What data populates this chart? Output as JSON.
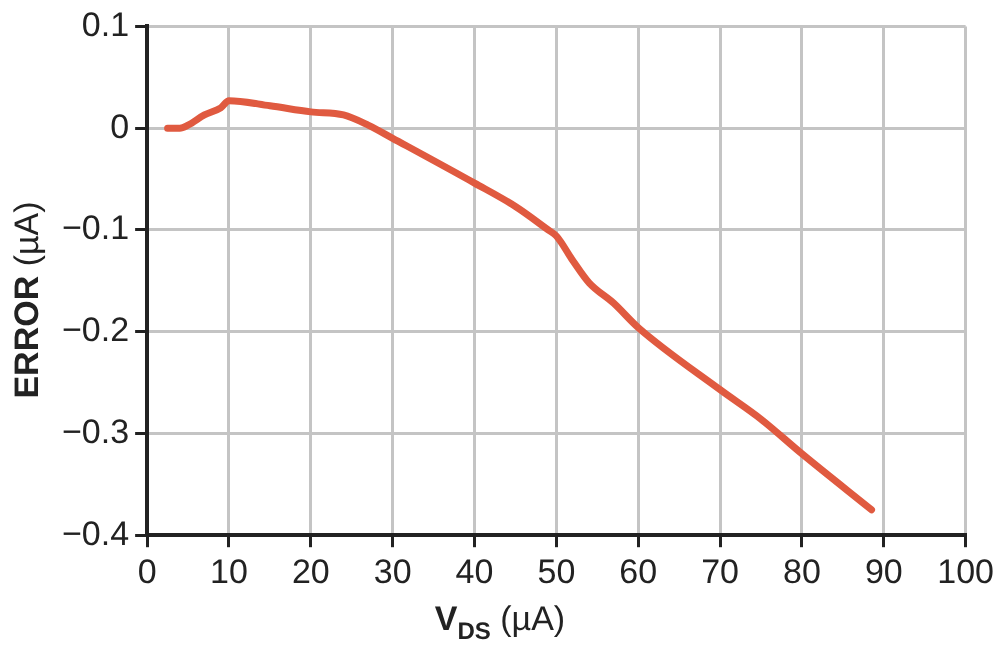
{
  "chart_data": {
    "type": "line",
    "xlabel": "V$_{DS}$ (µA)",
    "ylabel": "ERROR (µA)",
    "x": [
      2.5,
      4,
      5,
      7,
      9,
      10,
      15,
      20,
      24,
      27,
      30,
      40,
      45,
      49,
      50,
      52,
      54,
      57,
      60,
      70,
      75,
      80,
      88.5
    ],
    "series": [
      {
        "color": "#e05a40",
        "values": [
          0,
          0,
          0.003,
          0.013,
          0.02,
          0.027,
          0.022,
          0.016,
          0.013,
          0.003,
          -0.01,
          -0.054,
          -0.077,
          -0.1,
          -0.106,
          -0.13,
          -0.152,
          -0.172,
          -0.196,
          -0.257,
          -0.286,
          -0.32,
          -0.375
        ]
      }
    ],
    "xlim": [
      0,
      100
    ],
    "xticks": [
      0,
      10,
      20,
      30,
      40,
      50,
      60,
      70,
      80,
      90,
      100
    ],
    "ylim": [
      -0.4,
      0.1
    ],
    "yticks": [
      {
        "value": -0.4,
        "label": "−0.4"
      },
      {
        "value": -0.3,
        "label": "−0.3"
      },
      {
        "value": -0.2,
        "label": "−0.2"
      },
      {
        "value": -0.1,
        "label": "−0.1"
      },
      0,
      0.1
    ],
    "grid": true,
    "legend": false,
    "marker": "none",
    "line_style": "solid"
  }
}
